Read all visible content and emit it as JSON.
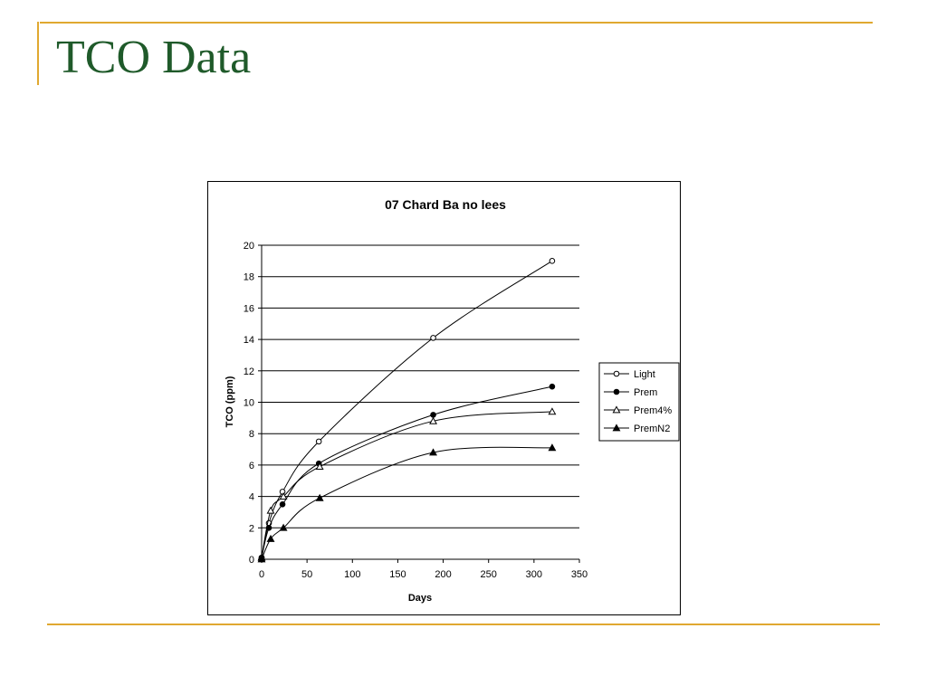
{
  "slide": {
    "title": "TCO Data",
    "title_color": "#1f5a2a",
    "accent_color": "#e0a830"
  },
  "chart_data": {
    "type": "line",
    "title": "07 Chard Ba no lees",
    "xlabel": "Days",
    "ylabel": "TCO (ppm)",
    "xlim": [
      0,
      350
    ],
    "ylim": [
      0,
      20
    ],
    "xticks": [
      0,
      50,
      100,
      150,
      200,
      250,
      300,
      350
    ],
    "yticks": [
      0,
      2,
      4,
      6,
      8,
      10,
      12,
      14,
      16,
      18,
      20
    ],
    "grid": "horizontal",
    "legend": "right",
    "smooth": true,
    "series": [
      {
        "name": "Light",
        "marker": "open-circle",
        "x": [
          0,
          8,
          23,
          63,
          189,
          320
        ],
        "y": [
          0.1,
          2.3,
          4.3,
          7.5,
          14.1,
          19.0
        ]
      },
      {
        "name": "Prem",
        "marker": "filled-circle",
        "x": [
          0,
          8,
          23,
          63,
          189,
          320
        ],
        "y": [
          0.1,
          2.0,
          3.5,
          6.1,
          9.2,
          11.0
        ]
      },
      {
        "name": "Prem4%",
        "marker": "open-triangle",
        "x": [
          0,
          10,
          24,
          64,
          189,
          320
        ],
        "y": [
          0.1,
          3.1,
          4.0,
          5.9,
          8.8,
          9.4
        ]
      },
      {
        "name": "PremN2",
        "marker": "filled-triangle",
        "x": [
          0,
          10,
          24,
          64,
          189,
          320
        ],
        "y": [
          0.0,
          1.3,
          2.0,
          3.9,
          6.8,
          7.1
        ]
      }
    ]
  }
}
